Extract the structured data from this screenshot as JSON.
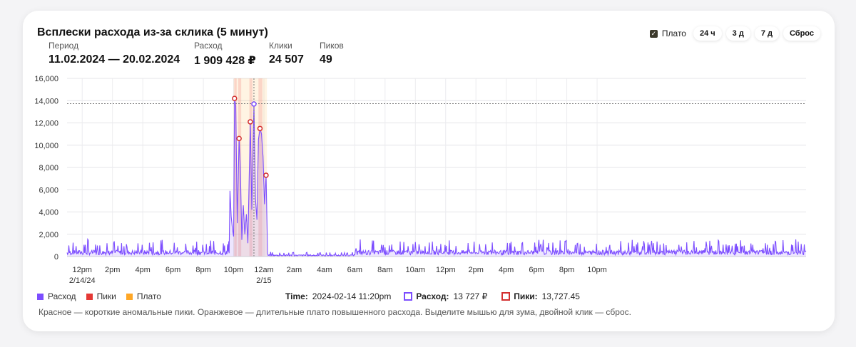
{
  "title": "Всплески расхода из-за склика (5 минут)",
  "stats": [
    {
      "label": "Период",
      "value": "11.02.2024 — 20.02.2024"
    },
    {
      "label": "Расход",
      "value": "1 909 428 ₽"
    },
    {
      "label": "Клики",
      "value": "24 507"
    },
    {
      "label": "Пиков",
      "value": "49"
    }
  ],
  "controls": {
    "plato_label": "Плато",
    "plato_checked": true,
    "buttons": [
      "24 ч",
      "3 д",
      "7 д",
      "Сброс"
    ]
  },
  "legend": [
    {
      "label": "Расход",
      "color": "#7c4dff"
    },
    {
      "label": "Пики",
      "color": "#e53935"
    },
    {
      "label": "Плато",
      "color": "#ffa726"
    }
  ],
  "tooltip": {
    "time_label": "Time:",
    "time_value": "2024-02-14 11:20pm",
    "spend_label": "Расход:",
    "spend_value": "13 727 ₽",
    "peaks_label": "Пики:",
    "peaks_value": "13,727.45"
  },
  "footnote": "Красное — короткие аномальные пики. Оранжевое — длительные плато повышенного расхода. Выделите мышью для зума, двойной клик — сброс.",
  "chart_data": {
    "type": "area",
    "y_ticks": [
      "16,000",
      "14,000",
      "12,000",
      "10,000",
      "8,000",
      "6,000",
      "4,000",
      "2,000",
      "0"
    ],
    "ylim": [
      0,
      16000
    ],
    "x_range_hours": [
      11.5,
      35.9
    ],
    "x_ticks": [
      {
        "h": 12,
        "label": "12pm",
        "sub": "2/14/24"
      },
      {
        "h": 13,
        "label": "2pm"
      },
      {
        "h": 14,
        "label": "4pm"
      },
      {
        "h": 15,
        "label": "6pm"
      },
      {
        "h": 16,
        "label": "8pm"
      },
      {
        "h": 17,
        "label": "10pm"
      },
      {
        "h": 18,
        "label": "12am",
        "sub": "2/15"
      },
      {
        "h": 19,
        "label": "2am"
      },
      {
        "h": 20,
        "label": "4am"
      },
      {
        "h": 21,
        "label": "6am"
      },
      {
        "h": 22,
        "label": "8am"
      },
      {
        "h": 23,
        "label": "10am"
      },
      {
        "h": 24,
        "label": "12pm"
      },
      {
        "h": 25,
        "label": "2pm"
      },
      {
        "h": 26,
        "label": "4pm"
      },
      {
        "h": 27,
        "label": "6pm"
      },
      {
        "h": 28,
        "label": "8pm"
      },
      {
        "h": 29,
        "label": "10pm"
      }
    ],
    "series_color": "#7c4dff",
    "reference_line": 13727,
    "hover_x": 17.67,
    "spike_series": [
      [
        16.85,
        300
      ],
      [
        16.88,
        5900
      ],
      [
        16.92,
        3600
      ],
      [
        16.96,
        2500
      ],
      [
        17.0,
        1800
      ],
      [
        17.03,
        14200
      ],
      [
        17.07,
        13500
      ],
      [
        17.12,
        3000
      ],
      [
        17.18,
        10600
      ],
      [
        17.22,
        8000
      ],
      [
        17.27,
        1500
      ],
      [
        17.32,
        4600
      ],
      [
        17.37,
        2000
      ],
      [
        17.42,
        3800
      ],
      [
        17.47,
        1200
      ],
      [
        17.55,
        12100
      ],
      [
        17.6,
        4200
      ],
      [
        17.67,
        13700
      ],
      [
        17.72,
        5200
      ],
      [
        17.77,
        3300
      ],
      [
        17.82,
        10500
      ],
      [
        17.87,
        11500
      ],
      [
        17.92,
        11000
      ],
      [
        17.97,
        9000
      ],
      [
        18.02,
        4700
      ],
      [
        18.07,
        7300
      ],
      [
        18.12,
        300
      ]
    ],
    "peaks": [
      [
        17.03,
        14200
      ],
      [
        17.18,
        10600
      ],
      [
        17.55,
        12100
      ],
      [
        17.67,
        13700
      ],
      [
        17.87,
        11500
      ],
      [
        18.07,
        7300
      ]
    ],
    "plateaus": [
      {
        "from": 17.0,
        "to": 17.5,
        "level": "light"
      },
      {
        "from": 17.5,
        "to": 18.1,
        "level": "light"
      },
      {
        "from": 17.02,
        "to": 17.1,
        "level": "strong"
      },
      {
        "from": 17.15,
        "to": 17.25,
        "level": "strong"
      },
      {
        "from": 17.52,
        "to": 17.62,
        "level": "strong"
      },
      {
        "from": 17.82,
        "to": 17.95,
        "level": "strong"
      }
    ]
  }
}
